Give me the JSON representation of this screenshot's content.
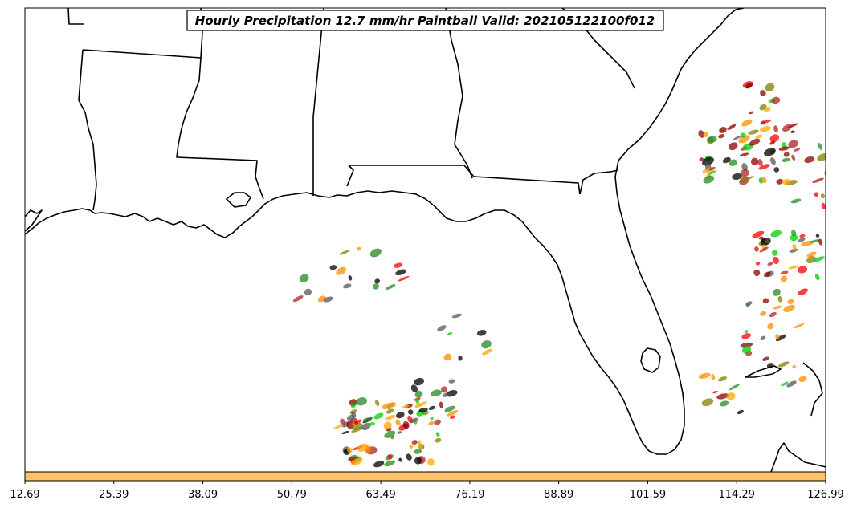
{
  "title": "Hourly Precipitation 12.7 mm/hr Paintball Valid: 202105122100f012",
  "colorbar": {
    "color": "#ffc266",
    "tick_labels": [
      "12.69",
      "25.39",
      "38.09",
      "50.79",
      "63.49",
      "76.19",
      "88.89",
      "101.59",
      "114.29",
      "126.99"
    ]
  },
  "colors": {
    "map_border": "#000000",
    "member_palette": [
      "#000000",
      "#8b0000",
      "#ff0000",
      "#ff8c00",
      "#ffa500",
      "#808000",
      "#00cc00",
      "#228b22",
      "#b22222",
      "#555555"
    ]
  }
}
